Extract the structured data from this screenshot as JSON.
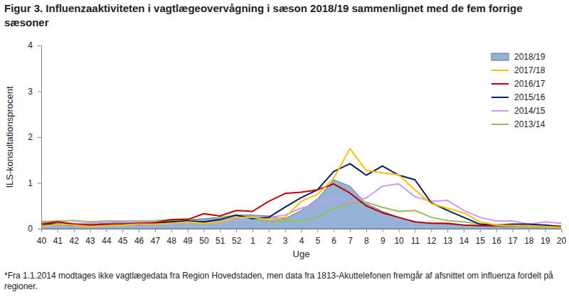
{
  "chart_data": {
    "type": "line",
    "title": "Figur 3. Influenzaaktiviteten i vagtlægeovervågning i sæson 2018/19 sammenlignet med de fem forrige sæsoner",
    "xlabel": "Uge",
    "ylabel": "ILS-konsultationsprocent",
    "annotations": [
      "*Fra 1.1.2014 modtages ikke vagtlægedata fra Region Hovedstaden, men data fra 1813-Akuttelefonen fremgår af afsnittet om influenza fordelt på regioner."
    ],
    "categories": [
      "40",
      "41",
      "42",
      "43",
      "44",
      "45",
      "46",
      "47",
      "48",
      "49",
      "50",
      "51",
      "52",
      "1",
      "2",
      "3",
      "4",
      "5",
      "6",
      "7",
      "8",
      "9",
      "10",
      "11",
      "12",
      "13",
      "14",
      "15",
      "16",
      "17",
      "18",
      "19",
      "20"
    ],
    "ylim": [
      0,
      4
    ],
    "yticks": [
      0,
      1,
      2,
      3,
      4
    ],
    "grid": false,
    "legend": "top-right",
    "series": [
      {
        "name": "2018/19",
        "type": "area",
        "color": "#95b3d7",
        "values": [
          0.17,
          0.15,
          0.12,
          0.1,
          0.12,
          0.14,
          0.15,
          0.16,
          0.18,
          0.2,
          0.22,
          0.25,
          0.3,
          0.3,
          0.28,
          0.22,
          0.4,
          0.65,
          1.07,
          0.93,
          0.55,
          0.38,
          0.25,
          0.15,
          0.12,
          0.1,
          0.08,
          0.06,
          0.05,
          0.05,
          0.05,
          0.05,
          0.04
        ]
      },
      {
        "name": "2017/18",
        "type": "line",
        "color": "#ffc000",
        "values": [
          0.05,
          0.1,
          0.08,
          0.05,
          0.07,
          0.08,
          0.1,
          0.1,
          0.12,
          0.15,
          0.12,
          0.15,
          0.25,
          0.25,
          0.2,
          0.25,
          0.6,
          0.75,
          1.1,
          1.75,
          1.27,
          1.22,
          1.18,
          0.85,
          0.55,
          0.45,
          0.35,
          0.15,
          0.08,
          0.07,
          0.05,
          0.05,
          0.03
        ]
      },
      {
        "name": "2016/17",
        "type": "line",
        "color": "#c00000",
        "values": [
          0.1,
          0.15,
          0.1,
          0.08,
          0.1,
          0.1,
          0.12,
          0.13,
          0.2,
          0.2,
          0.33,
          0.28,
          0.4,
          0.38,
          0.6,
          0.77,
          0.8,
          0.85,
          0.98,
          0.78,
          0.5,
          0.35,
          0.25,
          0.15,
          0.12,
          0.12,
          0.08,
          0.07,
          0.07,
          0.07,
          0.05,
          0.05,
          0.04
        ]
      },
      {
        "name": "2015/16",
        "type": "line",
        "color": "#002060",
        "values": [
          0.1,
          0.1,
          0.08,
          0.08,
          0.08,
          0.1,
          0.1,
          0.12,
          0.15,
          0.17,
          0.15,
          0.2,
          0.3,
          0.22,
          0.25,
          0.47,
          0.68,
          0.85,
          1.25,
          1.42,
          1.17,
          1.37,
          1.17,
          1.07,
          0.57,
          0.4,
          0.25,
          0.1,
          0.08,
          0.1,
          0.1,
          0.08,
          0.05
        ]
      },
      {
        "name": "2014/15",
        "type": "line",
        "color": "#cc99ff",
        "values": [
          0.08,
          0.1,
          0.12,
          0.12,
          0.15,
          0.15,
          0.15,
          0.15,
          0.15,
          0.15,
          0.15,
          0.2,
          0.18,
          0.25,
          0.25,
          0.3,
          0.45,
          0.55,
          0.65,
          0.6,
          0.67,
          0.93,
          0.98,
          0.7,
          0.6,
          0.62,
          0.4,
          0.25,
          0.17,
          0.17,
          0.1,
          0.15,
          0.12
        ]
      },
      {
        "name": "2013/14",
        "type": "line",
        "color": "#9bbb59",
        "values": [
          0.15,
          0.17,
          0.18,
          0.15,
          0.17,
          0.17,
          0.17,
          0.18,
          0.2,
          0.22,
          0.1,
          0.25,
          0.3,
          0.25,
          0.15,
          0.17,
          0.18,
          0.25,
          0.45,
          0.55,
          0.58,
          0.47,
          0.38,
          0.4,
          0.25,
          0.18,
          0.15,
          0.1,
          0.08,
          0.05,
          0.05,
          0.05,
          0.05
        ]
      }
    ]
  }
}
